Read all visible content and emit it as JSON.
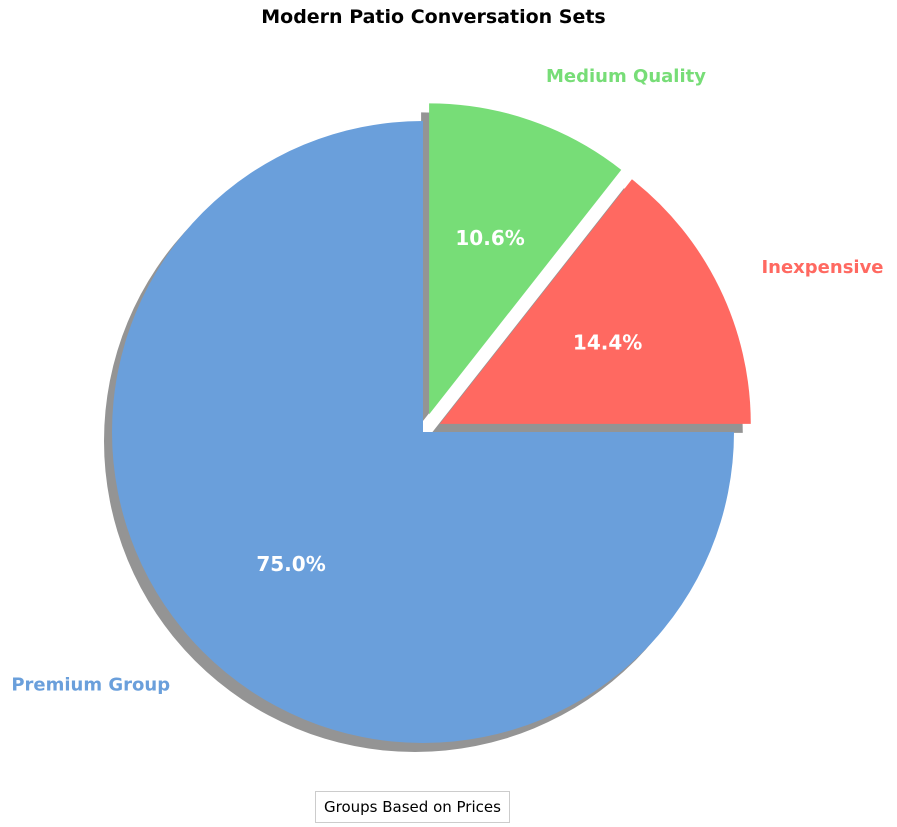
{
  "chart_data": {
    "type": "pie",
    "title": "Modern Patio Conversation Sets",
    "legend_title": "Groups Based on Prices",
    "legend_placement": "bottom-center",
    "start_angle_deg": 90,
    "direction": "counterclockwise",
    "shadow": true,
    "slices": [
      {
        "label": "Premium Group",
        "value": 75.0,
        "pct_label": "75.0%",
        "color": "#6A9FDB",
        "explode": false
      },
      {
        "label": "Inexpensive",
        "value": 14.4,
        "pct_label": "14.4%",
        "color": "#FF6961",
        "explode": true
      },
      {
        "label": "Medium Quality",
        "value": 10.6,
        "pct_label": "10.6%",
        "color": "#77DD77",
        "explode": true
      }
    ]
  }
}
